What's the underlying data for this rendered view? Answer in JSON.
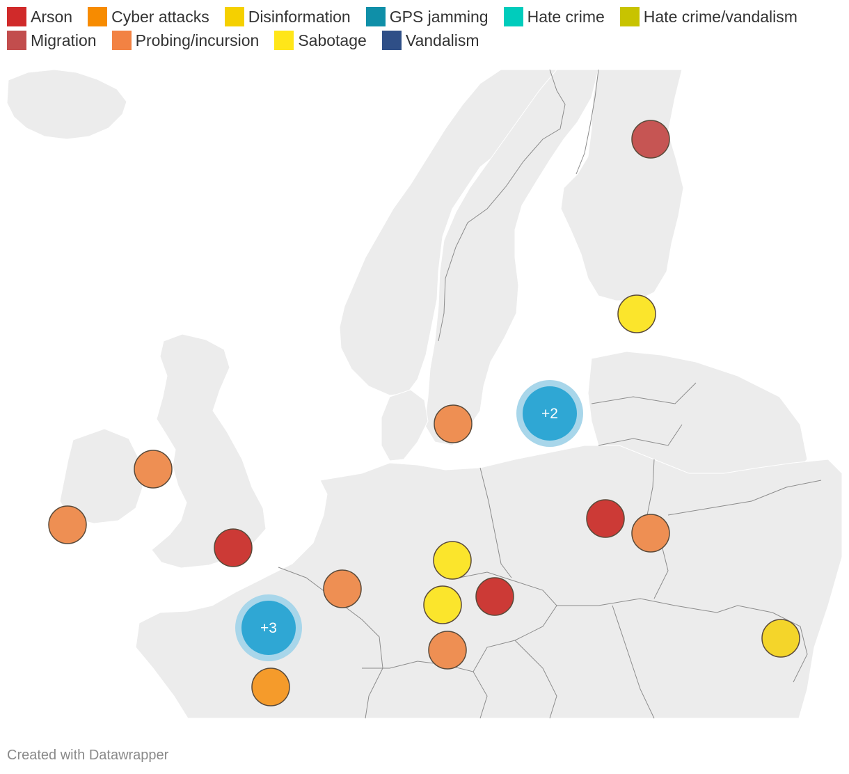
{
  "legend": [
    {
      "key": "arson",
      "label": "Arson",
      "color": "#d02a2a"
    },
    {
      "key": "cyber",
      "label": "Cyber attacks",
      "color": "#f78b00"
    },
    {
      "key": "disinfo",
      "label": "Disinformation",
      "color": "#f5d000"
    },
    {
      "key": "gps",
      "label": "GPS jamming",
      "color": "#0f8fa8"
    },
    {
      "key": "hate",
      "label": "Hate crime",
      "color": "#00ccbc"
    },
    {
      "key": "hatevand",
      "label": "Hate crime/vandalism",
      "color": "#c8c300"
    },
    {
      "key": "migration",
      "label": "Migration",
      "color": "#c24d4d"
    },
    {
      "key": "probing",
      "label": "Probing/incursion",
      "color": "#f28243"
    },
    {
      "key": "sabotage",
      "label": "Sabotage",
      "color": "#ffe619"
    },
    {
      "key": "vandalism",
      "label": "Vandalism",
      "color": "#2f4f87"
    }
  ],
  "map": {
    "land_color": "#ececec",
    "border_color": "#8c8c8c",
    "marker_fill_colors": {
      "migration": "#c65553",
      "arson": "#cc3a36",
      "probing": "#ee8f53",
      "sabotage": "#fbe52c",
      "disinfo": "#f4d52a",
      "cyber": "#f59b2b",
      "cluster": "#2fa7d4",
      "cluster_halo": "#a8d6ea"
    },
    "markers": [
      {
        "category": "migration",
        "location": "Northern Finland"
      },
      {
        "category": "sabotage",
        "location": "Gulf of Finland"
      },
      {
        "category": "probing",
        "location": "Southern Sweden"
      },
      {
        "category": "probing",
        "location": "Irish Sea"
      },
      {
        "category": "probing",
        "location": "Southern Ireland"
      },
      {
        "category": "arson",
        "location": "London"
      },
      {
        "category": "probing",
        "location": "Belgium"
      },
      {
        "category": "sabotage",
        "location": "Central Germany"
      },
      {
        "category": "sabotage",
        "location": "Southern Germany"
      },
      {
        "category": "arson",
        "location": "Czech Republic"
      },
      {
        "category": "probing",
        "location": "Bavaria"
      },
      {
        "category": "arson",
        "location": "Warsaw"
      },
      {
        "category": "probing",
        "location": "Eastern Poland"
      },
      {
        "category": "disinfo",
        "location": "Moldova"
      },
      {
        "category": "cyber",
        "location": "Southern France"
      }
    ],
    "clusters": [
      {
        "label": "+2",
        "location": "Baltic Sea"
      },
      {
        "label": "+3",
        "location": "Northern France"
      }
    ]
  },
  "footer": {
    "credit": "Created with Datawrapper"
  }
}
